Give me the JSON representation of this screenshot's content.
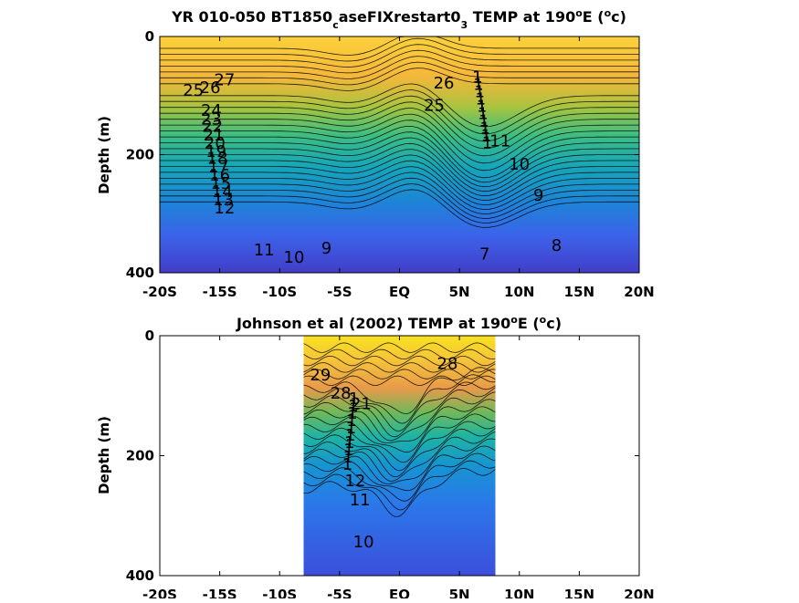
{
  "chart_data": [
    {
      "type": "heatmap",
      "subtype": "filled-contour",
      "title": {
        "pre": "YR 010-050 BT1850",
        "sub1": "c",
        "mid": "aseFIXrestart0",
        "sub2": "3",
        "mid2": " TEMP at 190",
        "sup1": "o",
        "mid3": "E (",
        "sup2": "o",
        "post": "c)"
      },
      "ylabel": "Depth (m)",
      "x_tick_labels": [
        "-20S",
        "-15S",
        "-10S",
        "-5S",
        "EQ",
        "5N",
        "10N",
        "15N",
        "20N"
      ],
      "x_ticks": [
        -20,
        -15,
        -10,
        -5,
        0,
        5,
        10,
        15,
        20
      ],
      "y_tick_labels": [
        "0",
        "200",
        "400"
      ],
      "y_ticks": [
        0,
        200,
        400
      ],
      "xlim": [
        -20,
        20
      ],
      "ylim": [
        400,
        0
      ],
      "y_reversed": true,
      "data_extent": [
        -20,
        20
      ],
      "colormap": "parula",
      "contour_labels": [
        {
          "text": "27",
          "x": -14.6,
          "y": 75
        },
        {
          "text": "26",
          "x": -15.8,
          "y": 88
        },
        {
          "text": "25",
          "x": -17.2,
          "y": 93
        },
        {
          "text": "24",
          "x": -15.7,
          "y": 127
        },
        {
          "text": "23",
          "x": -15.7,
          "y": 141
        },
        {
          "text": "22",
          "x": -15.6,
          "y": 154
        },
        {
          "text": "21",
          "x": -15.5,
          "y": 168
        },
        {
          "text": "20",
          "x": -15.4,
          "y": 182
        },
        {
          "text": "19",
          "x": -15.3,
          "y": 196
        },
        {
          "text": "18",
          "x": -15.2,
          "y": 208
        },
        {
          "text": "17",
          "x": -15.1,
          "y": 222
        },
        {
          "text": "16",
          "x": -15.0,
          "y": 236
        },
        {
          "text": "15",
          "x": -14.9,
          "y": 250
        },
        {
          "text": "14",
          "x": -14.8,
          "y": 264
        },
        {
          "text": "13",
          "x": -14.7,
          "y": 278
        },
        {
          "text": "12",
          "x": -14.6,
          "y": 292
        },
        {
          "text": "11",
          "x": -11.3,
          "y": 363
        },
        {
          "text": "10",
          "x": -8.8,
          "y": 375
        },
        {
          "text": "9",
          "x": -6.1,
          "y": 360
        },
        {
          "text": "26",
          "x": 3.7,
          "y": 80
        },
        {
          "text": "25",
          "x": 2.9,
          "y": 118
        },
        {
          "text": "11",
          "x": 8.4,
          "y": 178
        },
        {
          "text": "10",
          "x": 10.0,
          "y": 218
        },
        {
          "text": "9",
          "x": 11.6,
          "y": 270
        },
        {
          "text": "8",
          "x": 13.1,
          "y": 355
        },
        {
          "text": "7",
          "x": 7.1,
          "y": 370
        }
      ],
      "dense_labels_region": {
        "x": 6.5,
        "y": 140,
        "levels": "12-24"
      }
    },
    {
      "type": "heatmap",
      "subtype": "filled-contour",
      "title": {
        "pre": "Johnson et al (2002) TEMP at 190",
        "sup1": "o",
        "mid": "E (",
        "sup2": "o",
        "post": "c)"
      },
      "ylabel": "Depth (m)",
      "x_tick_labels": [
        "-20S",
        "-15S",
        "-10S",
        "-5S",
        "EQ",
        "5N",
        "10N",
        "15N",
        "20N"
      ],
      "x_ticks": [
        -20,
        -15,
        -10,
        -5,
        0,
        5,
        10,
        15,
        20
      ],
      "y_tick_labels": [
        "0",
        "200",
        "400"
      ],
      "y_ticks": [
        0,
        200,
        400
      ],
      "xlim": [
        -20,
        20
      ],
      "ylim": [
        400,
        0
      ],
      "y_reversed": true,
      "data_extent": [
        -8,
        8
      ],
      "colormap": "parula",
      "contour_labels": [
        {
          "text": "29",
          "x": -6.6,
          "y": 67
        },
        {
          "text": "28",
          "x": -4.9,
          "y": 97
        },
        {
          "text": "28",
          "x": 4.0,
          "y": 48
        },
        {
          "text": "21",
          "x": -3.2,
          "y": 115
        },
        {
          "text": "12",
          "x": -3.7,
          "y": 243
        },
        {
          "text": "11",
          "x": -3.3,
          "y": 275
        },
        {
          "text": "10",
          "x": -3.0,
          "y": 345
        }
      ],
      "dense_labels_region": {
        "x": -3.8,
        "y": 175,
        "levels": "13-20"
      }
    }
  ]
}
